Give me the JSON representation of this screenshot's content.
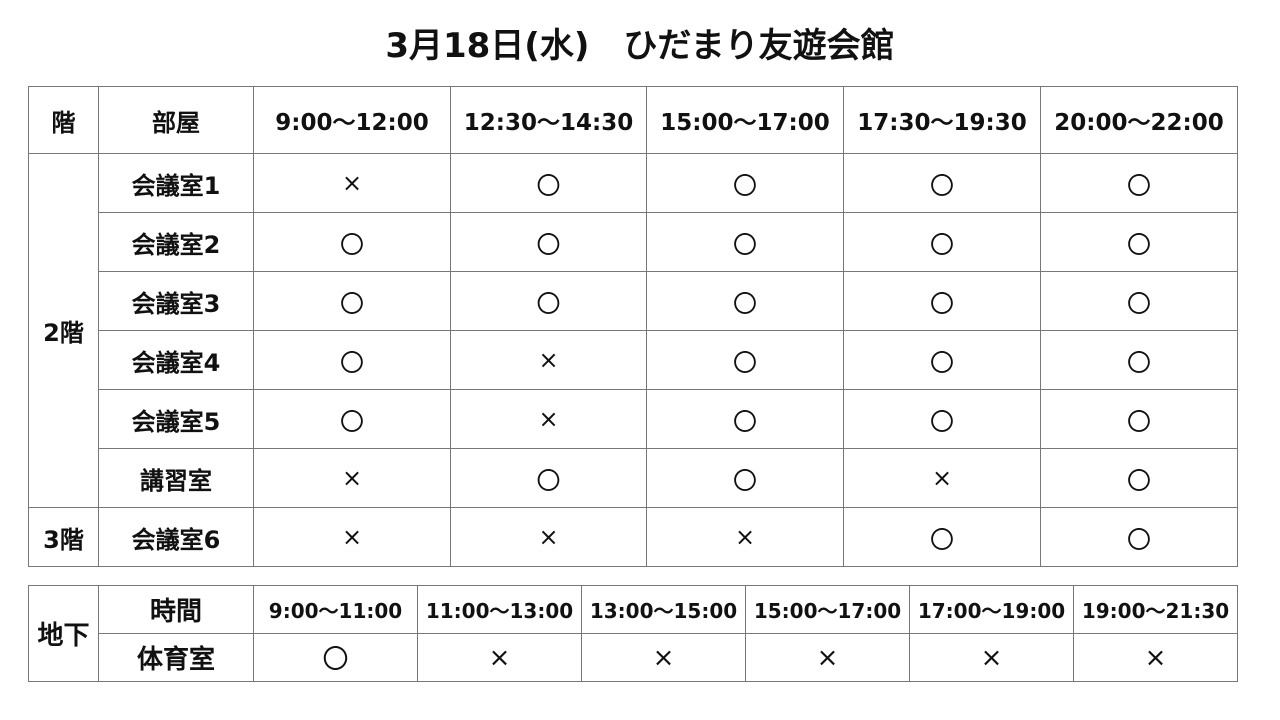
{
  "title": "3月18日(水)　ひだまり友遊会館",
  "main_table": {
    "headers": [
      "階",
      "部屋",
      "9:00～12:00",
      "12:30～14:30",
      "15:00～17:00",
      "17:30～19:30",
      "20:00～22:00"
    ],
    "groups": [
      {
        "floor": "2階",
        "rooms": [
          {
            "name": "会議室1",
            "slots": [
              "×",
              "〇",
              "〇",
              "〇",
              "〇"
            ]
          },
          {
            "name": "会議室2",
            "slots": [
              "〇",
              "〇",
              "〇",
              "〇",
              "〇"
            ]
          },
          {
            "name": "会議室3",
            "slots": [
              "〇",
              "〇",
              "〇",
              "〇",
              "〇"
            ]
          },
          {
            "name": "会議室4",
            "slots": [
              "〇",
              "×",
              "〇",
              "〇",
              "〇"
            ]
          },
          {
            "name": "会議室5",
            "slots": [
              "〇",
              "×",
              "〇",
              "〇",
              "〇"
            ]
          },
          {
            "name": "講習室",
            "slots": [
              "×",
              "〇",
              "〇",
              "×",
              "〇"
            ]
          }
        ]
      },
      {
        "floor": "3階",
        "rooms": [
          {
            "name": "会議室6",
            "slots": [
              "×",
              "×",
              "×",
              "〇",
              "〇"
            ]
          }
        ]
      }
    ]
  },
  "basement_table": {
    "floor": "地下",
    "time_label": "時間",
    "times": [
      "9:00～11:00",
      "11:00～13:00",
      "13:00～15:00",
      "15:00～17:00",
      "17:00～19:00",
      "19:00～21:30"
    ],
    "room": "体育室",
    "slots": [
      "〇",
      "×",
      "×",
      "×",
      "×",
      "×"
    ]
  }
}
